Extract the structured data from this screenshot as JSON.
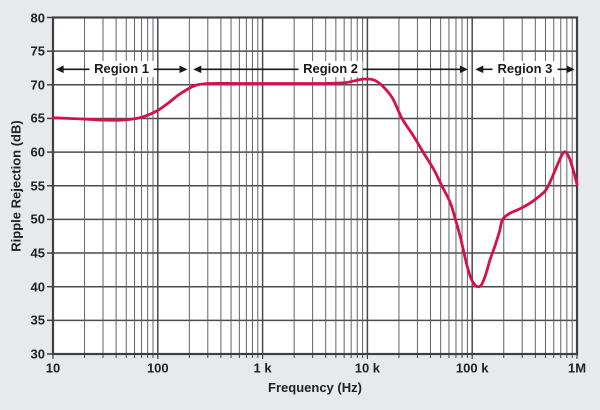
{
  "colors": {
    "background": "#e8e9eb",
    "plot_background": "#ffffff",
    "grid_major": "#4a4b4f",
    "grid_minor": "#626367",
    "frame": "#404145",
    "curve": "#d4114a",
    "text": "#202124",
    "arrow": "#1a1a1a"
  },
  "chart_data": {
    "type": "line",
    "title": "",
    "xlabel": "Frequency (Hz)",
    "ylabel": "Ripple Rejection (dB)",
    "x_scale": "log",
    "xlim": [
      10,
      1000000
    ],
    "ylim": [
      30,
      80
    ],
    "grid": true,
    "x_ticks": [
      {
        "value": 10,
        "label": "10"
      },
      {
        "value": 100,
        "label": "100"
      },
      {
        "value": 1000,
        "label": "1 k"
      },
      {
        "value": 10000,
        "label": "10 k"
      },
      {
        "value": 100000,
        "label": "100 k"
      },
      {
        "value": 1000000,
        "label": "1M"
      }
    ],
    "y_ticks": [
      30,
      35,
      40,
      45,
      50,
      55,
      60,
      65,
      70,
      75,
      80
    ],
    "legend": null,
    "series": [
      {
        "name": "Ripple Rejection",
        "color": "#d4114a",
        "points_hz_db": [
          [
            10,
            65.1
          ],
          [
            14,
            65.0
          ],
          [
            20,
            64.9
          ],
          [
            32,
            64.75
          ],
          [
            45,
            64.75
          ],
          [
            63,
            65.0
          ],
          [
            79,
            65.45
          ],
          [
            100,
            66.2
          ],
          [
            126,
            67.3
          ],
          [
            158,
            68.5
          ],
          [
            200,
            69.5
          ],
          [
            240,
            70.0
          ],
          [
            316,
            70.2
          ],
          [
            560,
            70.2
          ],
          [
            1000,
            70.2
          ],
          [
            2000,
            70.2
          ],
          [
            4000,
            70.2
          ],
          [
            6000,
            70.3
          ],
          [
            7600,
            70.6
          ],
          [
            9100,
            70.85
          ],
          [
            11000,
            70.8
          ],
          [
            12600,
            70.4
          ],
          [
            14800,
            69.4
          ],
          [
            17400,
            68.0
          ],
          [
            21400,
            65.0
          ],
          [
            27500,
            62.4
          ],
          [
            34000,
            60.0
          ],
          [
            42700,
            57.5
          ],
          [
            51300,
            55.0
          ],
          [
            61700,
            52.5
          ],
          [
            69200,
            50.0
          ],
          [
            75900,
            47.8
          ],
          [
            81300,
            45.8
          ],
          [
            89100,
            43.2
          ],
          [
            97700,
            41.2
          ],
          [
            107000,
            40.2
          ],
          [
            115000,
            40.0
          ],
          [
            123000,
            40.3
          ],
          [
            135000,
            41.9
          ],
          [
            148000,
            44.0
          ],
          [
            166000,
            46.2
          ],
          [
            182000,
            48.2
          ],
          [
            195000,
            50.0
          ],
          [
            229000,
            50.9
          ],
          [
            288000,
            51.6
          ],
          [
            355000,
            52.4
          ],
          [
            417000,
            53.2
          ],
          [
            501000,
            54.3
          ],
          [
            562000,
            55.8
          ],
          [
            646000,
            58.0
          ],
          [
            724000,
            59.7
          ],
          [
            776000,
            60.0
          ],
          [
            851000,
            59.0
          ],
          [
            933000,
            57.0
          ],
          [
            1000000,
            55.2
          ]
        ]
      }
    ],
    "annotations": {
      "regions": [
        {
          "label": "Region 1",
          "from_hz": 10.6,
          "to_hz": 192
        },
        {
          "label": "Region 2",
          "from_hz": 218,
          "to_hz": 91000
        },
        {
          "label": "Region 3",
          "from_hz": 107000,
          "to_hz": 950000
        }
      ],
      "region_band_db": 72.3
    }
  }
}
